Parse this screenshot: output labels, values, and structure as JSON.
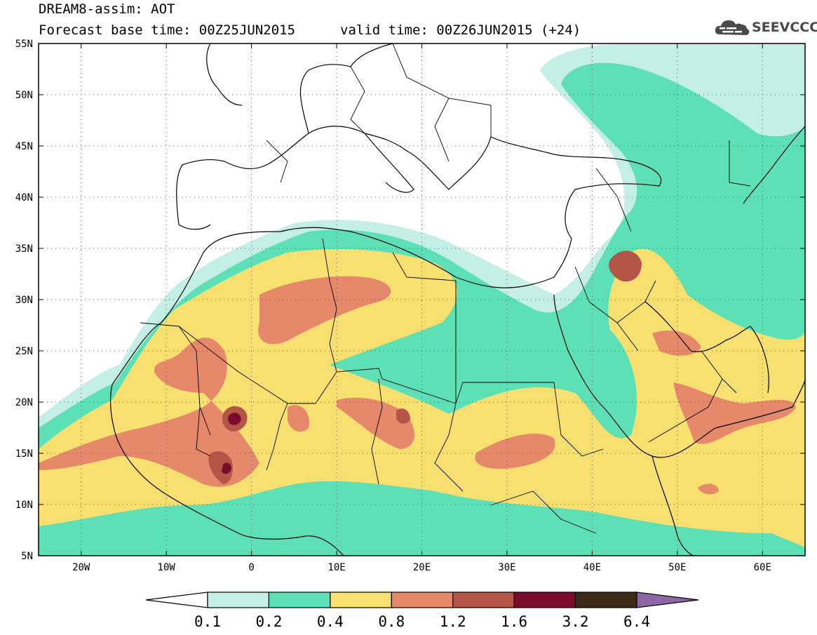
{
  "header": {
    "title_line1": "DREAM8-assim: AOT",
    "title_line2": "Forecast base time: 00Z25JUN2015",
    "valid_time": "valid time: 00Z26JUN2015 (+24)",
    "logo_text": "SEEVCCC"
  },
  "map": {
    "projection": "lat-lon",
    "lon_range": [
      -25,
      65
    ],
    "lat_range": [
      5,
      55
    ],
    "lat_ticks": [
      "5N",
      "10N",
      "15N",
      "20N",
      "25N",
      "30N",
      "35N",
      "40N",
      "45N",
      "50N",
      "55N"
    ],
    "lat_values": [
      5,
      10,
      15,
      20,
      25,
      30,
      35,
      40,
      45,
      50,
      55
    ],
    "lon_ticks": [
      "20W",
      "10W",
      "0",
      "10E",
      "20E",
      "30E",
      "40E",
      "50E",
      "60E"
    ],
    "lon_values": [
      -20,
      -10,
      0,
      10,
      20,
      30,
      40,
      50,
      60
    ],
    "grid": "dotted"
  },
  "colorbar": {
    "levels": [
      "0.1",
      "0.2",
      "0.4",
      "0.8",
      "1.2",
      "1.6",
      "3.2",
      "6.4"
    ],
    "colors": [
      "#ffffff",
      "#c4efe6",
      "#5ee0b6",
      "#f7e070",
      "#e5896a",
      "#b55548",
      "#7a0c2a",
      "#3e2916",
      "#8e66a6"
    ]
  }
}
